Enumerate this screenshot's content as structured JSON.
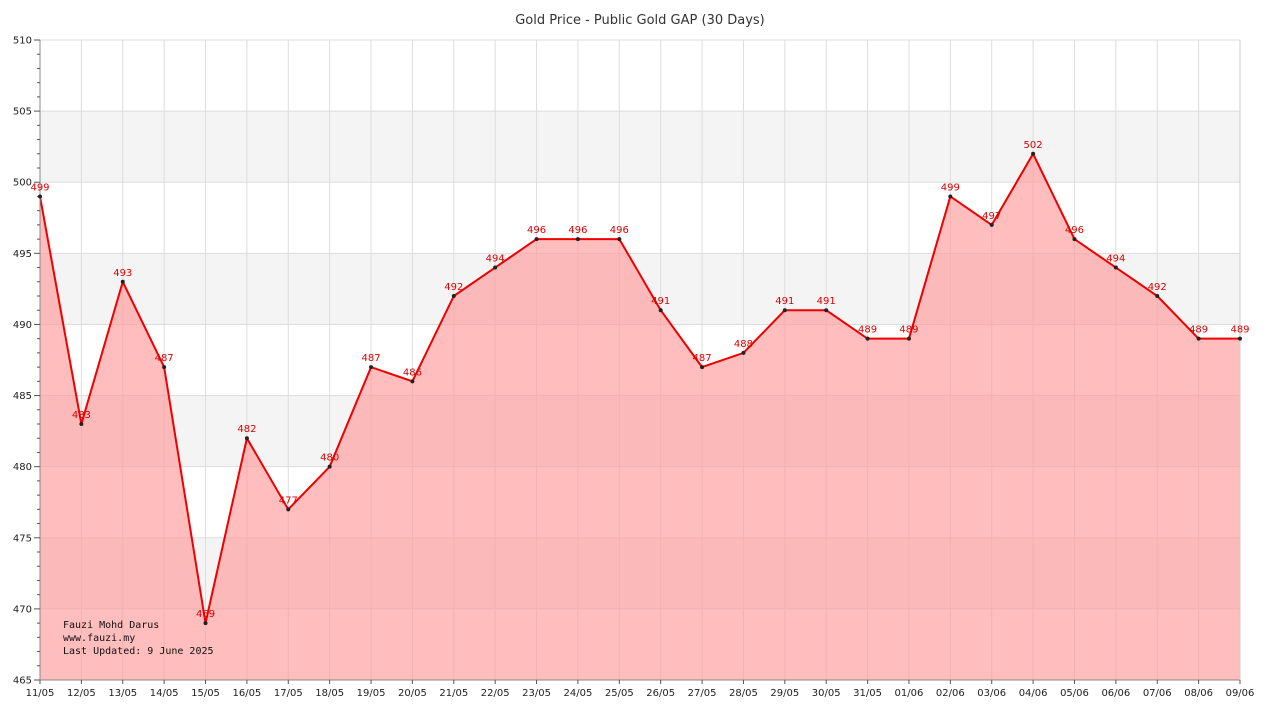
{
  "chart_data": {
    "type": "area",
    "title": "Gold Price - Public Gold GAP (30 Days)",
    "xlabel": "",
    "ylabel": "",
    "categories": [
      "11/05",
      "12/05",
      "13/05",
      "14/05",
      "15/05",
      "16/05",
      "17/05",
      "18/05",
      "19/05",
      "20/05",
      "21/05",
      "22/05",
      "23/05",
      "24/05",
      "25/05",
      "26/05",
      "27/05",
      "28/05",
      "29/05",
      "30/05",
      "31/05",
      "01/06",
      "02/06",
      "03/06",
      "04/06",
      "05/06",
      "06/06",
      "07/06",
      "08/06",
      "09/06"
    ],
    "values": [
      499,
      483,
      493,
      487,
      469,
      482,
      477,
      480,
      487,
      486,
      492,
      494,
      496,
      496,
      496,
      491,
      487,
      488,
      491,
      491,
      489,
      489,
      499,
      497,
      502,
      496,
      494,
      492,
      489,
      489
    ],
    "ylim": [
      465,
      510
    ],
    "yticks": [
      465,
      470,
      475,
      480,
      485,
      490,
      495,
      500,
      505,
      510
    ],
    "grid": true,
    "legend": "none"
  },
  "colors": {
    "line": "#ee0000",
    "fill": "#ff9999",
    "band": "#f4f4f4",
    "grid": "#dddddd",
    "marker": "#222222",
    "label": "#dd0000"
  },
  "credit": {
    "author": "Fauzi Mohd Darus",
    "website": "www.fauzi.my",
    "updated": "Last Updated: 9 June 2025"
  }
}
